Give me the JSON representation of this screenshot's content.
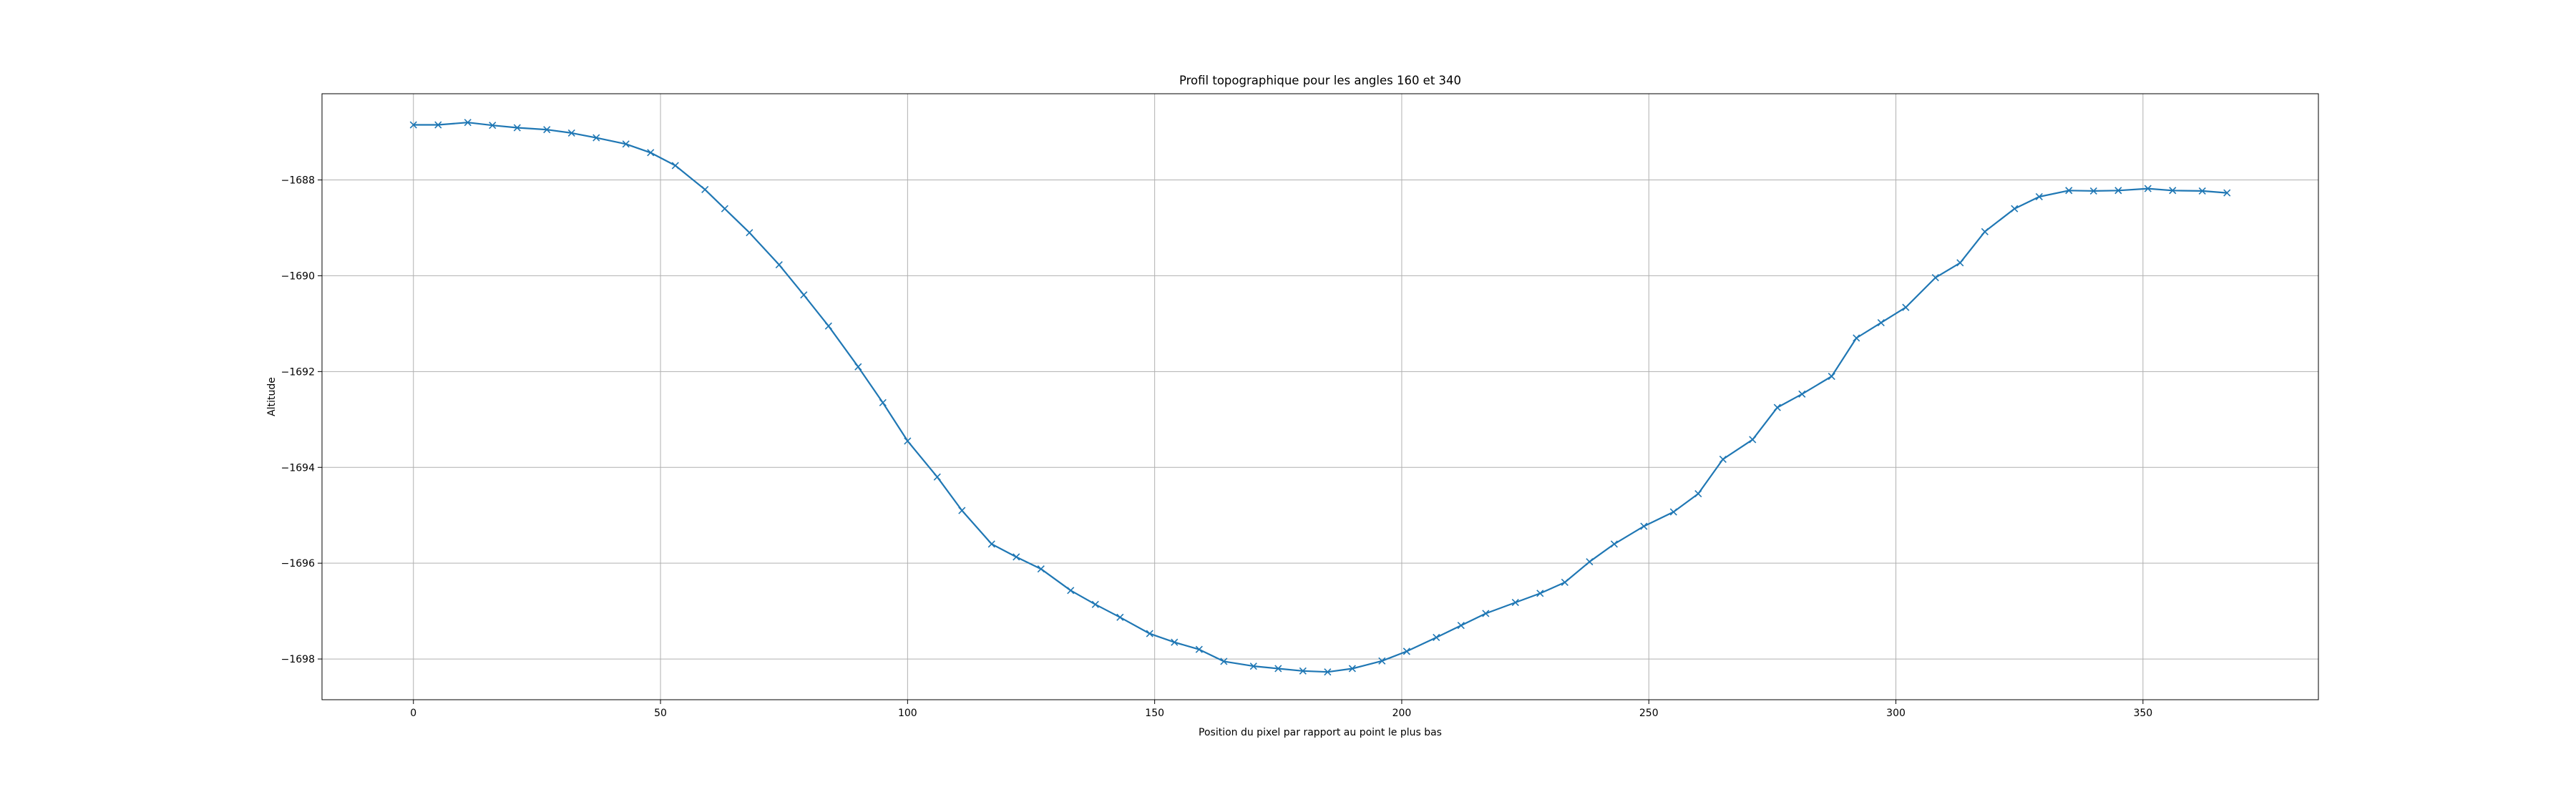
{
  "chart_data": {
    "type": "line",
    "title": "Profil topographique pour les angles 160 et 340",
    "xlabel": "Position du pixel par rapport au point le plus bas",
    "ylabel": "Altitude",
    "xlim": [
      -18.5,
      385.5
    ],
    "ylim": [
      -1698.85,
      -1686.2
    ],
    "xticks": [
      0,
      50,
      100,
      150,
      200,
      250,
      300,
      350
    ],
    "yticks": [
      -1698,
      -1696,
      -1694,
      -1692,
      -1690,
      -1688
    ],
    "grid": true,
    "marker": "x",
    "line_color": "#1f77b4",
    "series": [
      {
        "x": [
          0,
          5,
          11,
          16,
          21,
          27,
          32,
          37,
          43,
          48,
          53,
          59,
          63,
          68,
          74,
          79,
          84,
          90,
          95,
          100,
          106,
          111,
          117,
          122,
          127,
          133,
          138,
          143,
          149,
          154,
          159,
          164,
          170,
          175,
          180,
          185,
          190,
          196,
          201,
          207,
          212,
          217,
          223,
          228,
          233,
          238,
          243,
          249,
          255,
          260,
          265,
          271,
          276,
          281,
          287,
          292,
          297,
          302,
          308,
          313,
          318,
          324,
          329,
          335,
          340,
          345,
          351,
          356,
          362,
          367
        ],
        "y": [
          -1686.85,
          -1686.85,
          -1686.8,
          -1686.86,
          -1686.91,
          -1686.95,
          -1687.02,
          -1687.12,
          -1687.25,
          -1687.43,
          -1687.7,
          -1688.2,
          -1688.6,
          -1689.1,
          -1689.77,
          -1690.4,
          -1691.05,
          -1691.9,
          -1692.65,
          -1693.45,
          -1694.2,
          -1694.9,
          -1695.6,
          -1695.87,
          -1696.12,
          -1696.57,
          -1696.86,
          -1697.13,
          -1697.47,
          -1697.65,
          -1697.8,
          -1698.05,
          -1698.15,
          -1698.2,
          -1698.25,
          -1698.27,
          -1698.2,
          -1698.04,
          -1697.84,
          -1697.55,
          -1697.3,
          -1697.05,
          -1696.82,
          -1696.63,
          -1696.4,
          -1695.97,
          -1695.6,
          -1695.23,
          -1694.93,
          -1694.55,
          -1693.83,
          -1693.42,
          -1692.75,
          -1692.47,
          -1692.1,
          -1691.3,
          -1690.98,
          -1690.66,
          -1690.04,
          -1689.73,
          -1689.08,
          -1688.6,
          -1688.35,
          -1688.22,
          -1688.23,
          -1688.22,
          -1688.18,
          -1688.22,
          -1688.23,
          -1688.27
        ]
      }
    ]
  }
}
